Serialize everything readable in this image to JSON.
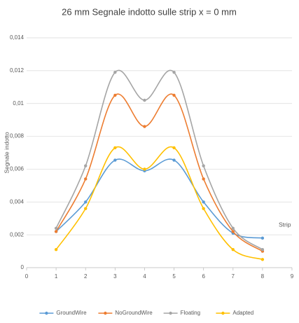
{
  "chart_data": {
    "type": "line",
    "title": "26 mm Segnale indotto sulle strip x = 0 mm",
    "y_label": "Segnale indotto",
    "x_label": "Strip",
    "x": [
      1,
      2,
      3,
      4,
      5,
      6,
      7,
      8
    ],
    "series": [
      {
        "name": "GroundWire",
        "color": "#5b9bd5",
        "values": [
          0.0022,
          0.004,
          0.00655,
          0.0059,
          0.00655,
          0.004,
          0.0021,
          0.0018
        ]
      },
      {
        "name": "NoGroundWire",
        "color": "#ed7d31",
        "values": [
          0.0022,
          0.0054,
          0.0105,
          0.0086,
          0.0105,
          0.0054,
          0.0022,
          0.001
        ]
      },
      {
        "name": "Floating",
        "color": "#a5a5a5",
        "values": [
          0.0024,
          0.0062,
          0.0119,
          0.0102,
          0.0119,
          0.0062,
          0.0024,
          0.0011
        ]
      },
      {
        "name": "Adapted",
        "color": "#ffc000",
        "values": [
          0.0011,
          0.0036,
          0.0073,
          0.006,
          0.0073,
          0.0036,
          0.0011,
          0.0005
        ]
      }
    ],
    "xlim": [
      0,
      9
    ],
    "xticks": [
      0,
      1,
      2,
      3,
      4,
      5,
      6,
      7,
      8,
      9
    ],
    "ylim": [
      0,
      0.014
    ],
    "yticks": [
      0,
      {
        "value": 0.002,
        "label": "0,002"
      },
      {
        "value": 0.004,
        "label": "0,004"
      },
      {
        "value": 0.006,
        "label": "0,006"
      },
      {
        "value": 0.008,
        "label": "0,008"
      },
      {
        "value": 0.01,
        "label": "0,01"
      },
      {
        "value": 0.012,
        "label": "0,012"
      },
      {
        "value": 0.014,
        "label": "0,014"
      }
    ],
    "grid": true,
    "smooth": true,
    "legend": "bottom"
  }
}
